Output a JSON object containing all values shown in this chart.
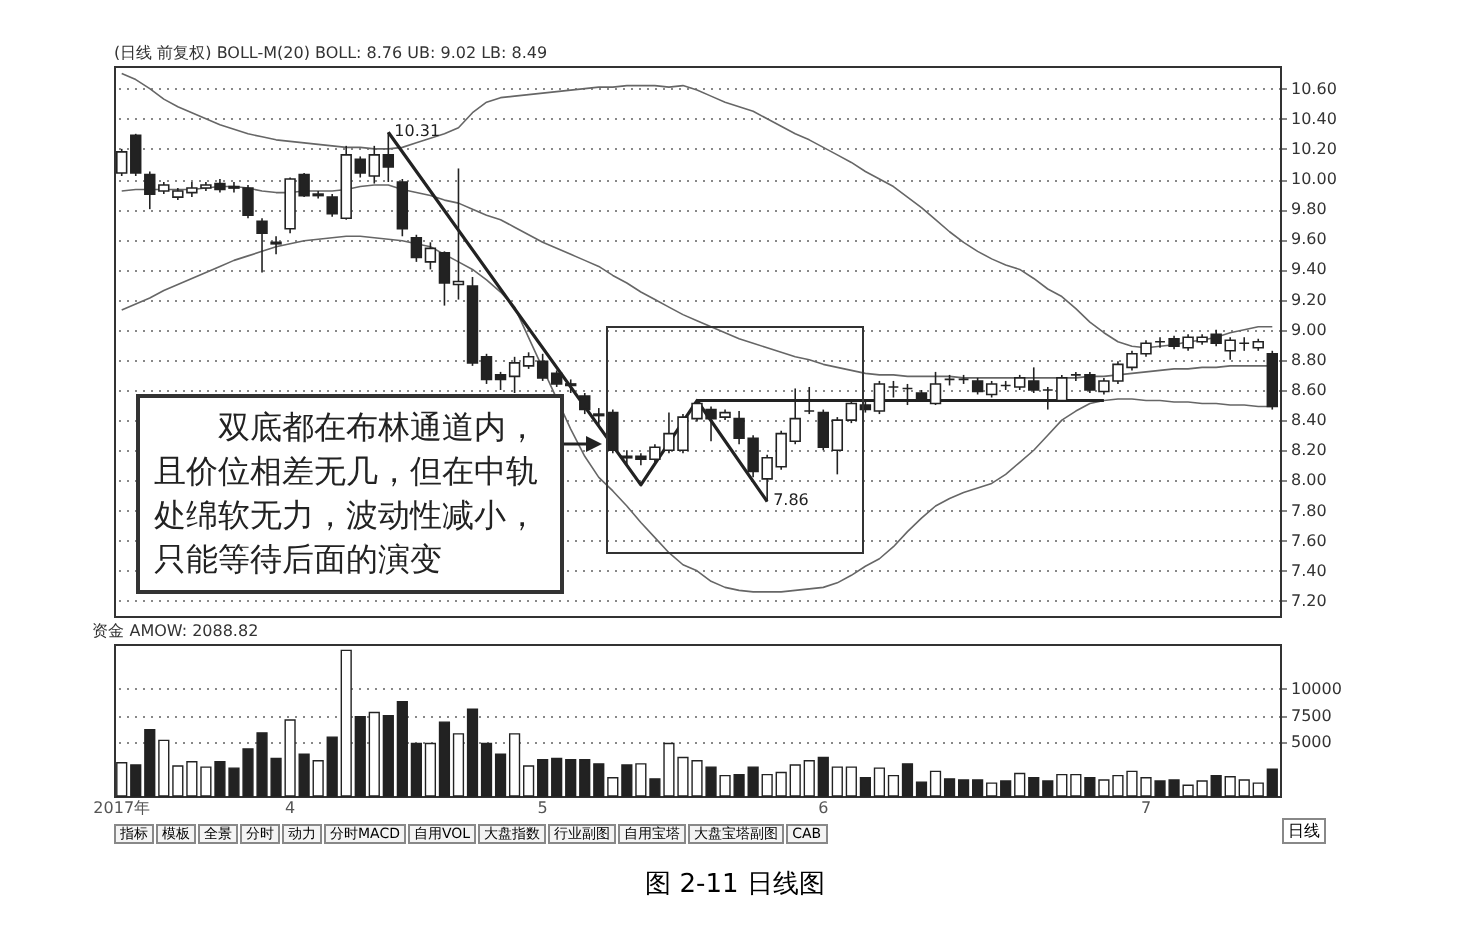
{
  "chart_data": [
    {
      "type": "candlestick",
      "title": "(日线 前复权) BOLL-M(20) BOLL: 8.76 UB: 9.02 LB: 8.49",
      "categories": [
        null,
        null,
        null,
        null,
        null,
        null,
        null,
        null,
        null,
        null,
        null,
        null,
        null,
        null,
        null,
        null,
        null,
        null,
        null,
        null,
        null,
        null,
        null,
        null,
        null,
        null,
        null,
        null,
        null,
        null,
        null,
        null,
        null,
        null,
        null,
        null,
        null,
        null,
        null,
        null,
        null,
        null,
        null,
        null,
        null,
        null,
        null,
        null,
        null,
        null,
        null,
        null,
        null,
        null,
        null,
        null,
        null,
        null,
        null,
        null,
        null,
        null,
        null,
        null,
        null,
        null,
        null,
        null,
        null,
        null,
        null,
        null,
        null,
        null,
        null,
        null,
        null,
        null,
        null,
        null,
        null,
        null,
        null
      ],
      "ohlc": [
        [
          10.04,
          10.2,
          10.02,
          10.18
        ],
        [
          10.29,
          10.3,
          10.02,
          10.04
        ],
        [
          10.03,
          10.05,
          9.8,
          9.9
        ],
        [
          9.92,
          9.98,
          9.9,
          9.96
        ],
        [
          9.88,
          9.94,
          9.86,
          9.92
        ],
        [
          9.91,
          9.98,
          9.88,
          9.94
        ],
        [
          9.94,
          9.98,
          9.92,
          9.96
        ],
        [
          9.97,
          10.0,
          9.91,
          9.93
        ],
        [
          9.95,
          9.98,
          9.91,
          9.94
        ],
        [
          9.94,
          9.96,
          9.74,
          9.76
        ],
        [
          9.72,
          9.74,
          9.38,
          9.64
        ],
        [
          9.58,
          9.62,
          9.5,
          9.57
        ],
        [
          9.67,
          10.01,
          9.64,
          10.0
        ],
        [
          10.03,
          10.04,
          9.88,
          9.89
        ],
        [
          9.9,
          9.92,
          9.87,
          9.89
        ],
        [
          9.88,
          9.9,
          9.75,
          9.77
        ],
        [
          9.74,
          10.22,
          9.73,
          10.16
        ],
        [
          10.13,
          10.15,
          10.01,
          10.04
        ],
        [
          10.02,
          10.22,
          9.97,
          10.16
        ],
        [
          10.16,
          10.31,
          9.98,
          10.08
        ],
        [
          9.98,
          10.0,
          9.62,
          9.67
        ],
        [
          9.61,
          9.63,
          9.45,
          9.48
        ],
        [
          9.45,
          9.58,
          9.4,
          9.54
        ],
        [
          9.51,
          9.52,
          9.16,
          9.31
        ],
        [
          9.3,
          10.07,
          9.2,
          9.32
        ],
        [
          9.29,
          9.35,
          8.76,
          8.78
        ],
        [
          8.82,
          8.84,
          8.64,
          8.67
        ],
        [
          8.7,
          8.72,
          8.6,
          8.67
        ],
        [
          8.69,
          8.82,
          8.58,
          8.78
        ],
        [
          8.76,
          8.85,
          8.74,
          8.82
        ],
        [
          8.79,
          8.84,
          8.66,
          8.68
        ],
        [
          8.71,
          8.73,
          8.62,
          8.64
        ],
        [
          8.64,
          8.67,
          8.58,
          8.63
        ],
        [
          8.56,
          8.58,
          8.44,
          8.47
        ],
        [
          8.44,
          8.48,
          8.36,
          8.43
        ],
        [
          8.45,
          8.47,
          8.18,
          8.2
        ],
        [
          8.16,
          8.2,
          8.1,
          8.15
        ],
        [
          8.16,
          8.18,
          8.1,
          8.14
        ],
        [
          8.14,
          8.24,
          8.12,
          8.22
        ],
        [
          8.2,
          8.45,
          8.18,
          8.31
        ],
        [
          8.2,
          8.44,
          8.18,
          8.42
        ],
        [
          8.41,
          8.53,
          8.39,
          8.51
        ],
        [
          8.47,
          8.49,
          8.26,
          8.41
        ],
        [
          8.42,
          8.47,
          8.4,
          8.45
        ],
        [
          8.41,
          8.46,
          8.24,
          8.28
        ],
        [
          8.28,
          8.3,
          8.02,
          8.06
        ],
        [
          8.01,
          8.17,
          7.86,
          8.15
        ],
        [
          8.09,
          8.33,
          8.07,
          8.31
        ],
        [
          8.26,
          8.61,
          8.24,
          8.41
        ],
        [
          8.46,
          8.62,
          8.44,
          8.46
        ],
        [
          8.45,
          8.47,
          8.2,
          8.22
        ],
        [
          8.2,
          8.42,
          8.04,
          8.4
        ],
        [
          8.4,
          8.53,
          8.38,
          8.51
        ],
        [
          8.5,
          8.52,
          8.45,
          8.47
        ],
        [
          8.46,
          8.66,
          8.44,
          8.64
        ],
        [
          8.62,
          8.66,
          8.55,
          8.62
        ],
        [
          8.61,
          8.64,
          8.5,
          8.61
        ],
        [
          8.58,
          8.6,
          8.52,
          8.53
        ],
        [
          8.51,
          8.72,
          8.5,
          8.64
        ],
        [
          8.67,
          8.7,
          8.63,
          8.67
        ],
        [
          8.67,
          8.7,
          8.64,
          8.67
        ],
        [
          8.66,
          8.68,
          8.57,
          8.59
        ],
        [
          8.57,
          8.66,
          8.55,
          8.64
        ],
        [
          8.63,
          8.66,
          8.6,
          8.63
        ],
        [
          8.62,
          8.7,
          8.6,
          8.68
        ],
        [
          8.66,
          8.75,
          8.58,
          8.6
        ],
        [
          8.6,
          8.62,
          8.47,
          8.6
        ],
        [
          8.53,
          8.7,
          8.52,
          8.68
        ],
        [
          8.7,
          8.72,
          8.66,
          8.7
        ],
        [
          8.7,
          8.72,
          8.58,
          8.6
        ],
        [
          8.59,
          8.68,
          8.57,
          8.66
        ],
        [
          8.66,
          8.79,
          8.64,
          8.77
        ],
        [
          8.75,
          8.86,
          8.73,
          8.84
        ],
        [
          8.84,
          8.93,
          8.82,
          8.91
        ],
        [
          8.92,
          8.95,
          8.88,
          8.92
        ],
        [
          8.94,
          8.96,
          8.87,
          8.89
        ],
        [
          8.88,
          8.97,
          8.86,
          8.95
        ],
        [
          8.92,
          8.97,
          8.9,
          8.95
        ],
        [
          8.97,
          9.0,
          8.89,
          8.91
        ],
        [
          8.86,
          8.95,
          8.8,
          8.93
        ],
        [
          8.91,
          8.95,
          8.86,
          8.91
        ],
        [
          8.88,
          8.94,
          8.86,
          8.92
        ],
        [
          8.84,
          8.86,
          8.47,
          8.49
        ]
      ],
      "series": [
        {
          "type": "line",
          "color": "#666666",
          "values": [
            10.7,
            10.66,
            10.6,
            10.53,
            10.48,
            10.44,
            10.4,
            10.36,
            10.33,
            10.3,
            10.28,
            10.26,
            10.25,
            10.24,
            10.23,
            10.22,
            10.21,
            10.21,
            10.2,
            10.2,
            10.21,
            10.24,
            10.27,
            10.3,
            10.34,
            10.44,
            10.51,
            10.54,
            10.55,
            10.56,
            10.57,
            10.58,
            10.59,
            10.6,
            10.61,
            10.61,
            10.62,
            10.62,
            10.62,
            10.61,
            10.62,
            10.59,
            10.55,
            10.51,
            10.48,
            10.45,
            10.4,
            10.35,
            10.3,
            10.26,
            10.21,
            10.16,
            10.11,
            10.05,
            10.0,
            9.95,
            9.88,
            9.81,
            9.73,
            9.65,
            9.58,
            9.52,
            9.47,
            9.43,
            9.4,
            9.34,
            9.27,
            9.22,
            9.14,
            9.05,
            8.98,
            8.92,
            8.89,
            8.88,
            8.89,
            8.9,
            8.92,
            8.93,
            8.95,
            8.98,
            9.0,
            9.02,
            9.02
          ]
        },
        {
          "type": "line",
          "color": "#666666",
          "values": [
            9.92,
            9.93,
            9.93,
            9.93,
            9.93,
            9.93,
            9.94,
            9.95,
            9.95,
            9.94,
            9.92,
            9.91,
            9.91,
            9.92,
            9.92,
            9.92,
            9.93,
            9.95,
            9.96,
            9.96,
            9.93,
            9.91,
            9.89,
            9.86,
            9.84,
            9.8,
            9.76,
            9.73,
            9.68,
            9.63,
            9.58,
            9.54,
            9.5,
            9.46,
            9.42,
            9.36,
            9.31,
            9.25,
            9.2,
            9.15,
            9.1,
            9.06,
            9.02,
            8.98,
            8.94,
            8.91,
            8.88,
            8.85,
            8.82,
            8.8,
            8.77,
            8.75,
            8.73,
            8.71,
            8.7,
            8.7,
            8.69,
            8.69,
            8.69,
            8.69,
            8.68,
            8.68,
            8.68,
            8.68,
            8.68,
            8.68,
            8.68,
            8.68,
            8.68,
            8.69,
            8.69,
            8.7,
            8.71,
            8.72,
            8.73,
            8.74,
            8.74,
            8.75,
            8.75,
            8.76,
            8.76,
            8.76,
            8.76
          ]
        },
        {
          "type": "line",
          "color": "#666666",
          "values": [
            9.13,
            9.17,
            9.21,
            9.26,
            9.3,
            9.34,
            9.38,
            9.42,
            9.46,
            9.49,
            9.52,
            9.55,
            9.57,
            9.59,
            9.6,
            9.61,
            9.62,
            9.62,
            9.61,
            9.6,
            9.59,
            9.57,
            9.55,
            9.5,
            9.45,
            9.4,
            9.33,
            9.25,
            9.15,
            null,
            null,
            null,
            8.34,
            8.16,
            8.02,
            7.93,
            7.83,
            7.72,
            7.62,
            7.52,
            7.44,
            7.4,
            7.33,
            7.29,
            7.27,
            7.26,
            7.26,
            7.26,
            7.27,
            7.28,
            7.29,
            7.32,
            7.37,
            7.43,
            7.48,
            7.56,
            7.66,
            7.75,
            7.83,
            7.88,
            7.92,
            7.95,
            7.98,
            8.04,
            8.12,
            8.2,
            8.3,
            8.4,
            8.46,
            8.51,
            8.53,
            8.54,
            8.54,
            8.53,
            8.53,
            8.52,
            8.52,
            8.51,
            8.51,
            8.5,
            8.5,
            8.49,
            8.49
          ]
        },
        {
          "type": "line",
          "color": "#222222",
          "values": [
            null,
            null,
            null,
            null,
            null,
            null,
            null,
            null,
            null,
            null,
            null,
            null,
            null,
            null,
            null,
            null,
            null,
            null,
            null,
            10.31,
            null,
            null,
            null,
            null,
            null,
            null,
            null,
            null,
            null,
            null,
            null,
            null,
            null,
            null,
            null,
            null,
            null,
            7.97,
            null,
            null,
            null,
            8.53,
            null,
            null,
            null,
            null,
            7.86,
            null,
            null,
            null,
            null,
            null,
            null,
            null,
            null,
            null,
            null,
            null,
            null,
            null,
            null,
            null,
            null,
            null,
            null,
            null,
            null,
            null,
            null,
            null,
            null,
            null,
            null,
            null,
            null,
            null,
            null,
            null,
            null,
            null,
            null,
            null,
            null
          ]
        },
        {
          "type": "line",
          "color": "#222222",
          "values": [
            null,
            null,
            null,
            null,
            null,
            null,
            null,
            null,
            null,
            null,
            null,
            null,
            null,
            null,
            null,
            null,
            null,
            null,
            null,
            null,
            null,
            null,
            null,
            null,
            null,
            null,
            null,
            null,
            null,
            null,
            null,
            null,
            null,
            null,
            null,
            null,
            null,
            null,
            null,
            null,
            null,
            8.53,
            null,
            null,
            null,
            null,
            null,
            null,
            null,
            null,
            null,
            null,
            null,
            null,
            null,
            null,
            null,
            null,
            null,
            null,
            null,
            null,
            null,
            null,
            null,
            null,
            null,
            null,
            null,
            null,
            8.53,
            null,
            null,
            null,
            null,
            null,
            null,
            null,
            null,
            null,
            null,
            null,
            null
          ]
        }
      ],
      "ylim": [
        7.1,
        10.75
      ],
      "yticks": [
        {
          "value": 7.2,
          "label": "7.20"
        },
        {
          "value": 7.4,
          "label": "7.40"
        },
        {
          "value": 7.6,
          "label": "7.60"
        },
        {
          "value": 7.8,
          "label": "7.80"
        },
        {
          "value": 8,
          "label": "8.00"
        },
        {
          "value": 8.2,
          "label": "8.20"
        },
        {
          "value": 8.4,
          "label": "8.40"
        },
        {
          "value": 8.6,
          "label": "8.60"
        },
        {
          "value": 8.8,
          "label": "8.80"
        },
        {
          "value": 9,
          "label": "9.00"
        },
        {
          "value": 9.2,
          "label": "9.20"
        },
        {
          "value": 9.4,
          "label": "9.40"
        },
        {
          "value": 9.6,
          "label": "9.60"
        },
        {
          "value": 9.8,
          "label": "9.80"
        },
        {
          "value": 10,
          "label": "10.00"
        },
        {
          "value": 10.2,
          "label": "10.20"
        },
        {
          "value": 10.4,
          "label": "10.40"
        },
        {
          "value": 10.6,
          "label": "10.60"
        }
      ],
      "grid": "y",
      "tick_labels": "y",
      "annotations": [
        {
          "text": "10.31",
          "y": 10.31
        },
        "7.86",
        "双底都在布林通道内，且价位相差无几，但在中轨处绵软无力，波动性减小，只能等待后面的演变"
      ]
    },
    {
      "type": "bar",
      "title": "资金 AMOW: 2088.82",
      "categories": [
        "2017年",
        null,
        null,
        null,
        null,
        null,
        null,
        null,
        null,
        null,
        null,
        null,
        "4",
        null,
        null,
        null,
        null,
        null,
        null,
        null,
        null,
        null,
        null,
        null,
        null,
        null,
        null,
        null,
        null,
        null,
        "5",
        null,
        null,
        null,
        null,
        null,
        null,
        null,
        null,
        null,
        null,
        null,
        null,
        null,
        null,
        null,
        null,
        null,
        null,
        null,
        "6",
        null,
        null,
        null,
        null,
        null,
        null,
        null,
        null,
        null,
        null,
        null,
        null,
        null,
        null,
        null,
        null,
        null,
        null,
        null,
        null,
        null,
        null,
        "7",
        null,
        null,
        null,
        null,
        null,
        null,
        null,
        null,
        null
      ],
      "values": [
        3100,
        2900,
        6200,
        5200,
        2800,
        3200,
        2700,
        3200,
        2600,
        4400,
        5900,
        3500,
        7100,
        3900,
        3300,
        5500,
        13600,
        7400,
        7800,
        7500,
        8800,
        4900,
        4900,
        6900,
        5800,
        8100,
        4900,
        3900,
        5800,
        2800,
        3400,
        3500,
        3400,
        3400,
        3000,
        1700,
        2900,
        3000,
        1600,
        4900,
        3600,
        3300,
        2700,
        1900,
        2000,
        2700,
        2000,
        2200,
        2900,
        3300,
        3600,
        2700,
        2700,
        1700,
        2600,
        1900,
        3000,
        1300,
        2300,
        1600,
        1500,
        1500,
        1200,
        1400,
        2100,
        1700,
        1400,
        2000,
        2000,
        1700,
        1500,
        1900,
        2300,
        1700,
        1400,
        1500,
        1000,
        1400,
        1900,
        1800,
        1500,
        1200,
        2500
      ],
      "colors": [
        "#ffffff",
        "#222222",
        "#222222",
        "#ffffff",
        "#ffffff",
        "#ffffff",
        "#ffffff",
        "#222222",
        "#222222",
        "#222222",
        "#222222",
        "#222222",
        "#ffffff",
        "#222222",
        "#ffffff",
        "#222222",
        "#ffffff",
        "#222222",
        "#ffffff",
        "#222222",
        "#222222",
        "#222222",
        "#ffffff",
        "#222222",
        "#ffffff",
        "#222222",
        "#222222",
        "#222222",
        "#ffffff",
        "#ffffff",
        "#222222",
        "#222222",
        "#222222",
        "#222222",
        "#222222",
        "#ffffff",
        "#222222",
        "#ffffff",
        "#222222",
        "#ffffff",
        "#ffffff",
        "#ffffff",
        "#222222",
        "#ffffff",
        "#222222",
        "#222222",
        "#ffffff",
        "#ffffff",
        "#ffffff",
        "#ffffff",
        "#222222",
        "#ffffff",
        "#ffffff",
        "#222222",
        "#ffffff",
        "#ffffff",
        "#222222",
        "#222222",
        "#ffffff",
        "#222222",
        "#222222",
        "#222222",
        "#ffffff",
        "#222222",
        "#ffffff",
        "#222222",
        "#222222",
        "#ffffff",
        "#ffffff",
        "#222222",
        "#ffffff",
        "#ffffff",
        "#ffffff",
        "#ffffff",
        "#222222",
        "#222222",
        "#ffffff",
        "#ffffff",
        "#222222",
        "#ffffff",
        "#ffffff",
        "#ffffff",
        "#222222"
      ],
      "ylim": [
        0,
        14200
      ],
      "yticks": [
        5000,
        7500,
        10000
      ],
      "grid": "y",
      "annotations": [
        "指标",
        "模板",
        "全景",
        "分时",
        "动力",
        "分时MACD",
        "自用VOL",
        "大盘指数",
        "行业副图",
        "自用宝塔",
        "大盘宝塔副图",
        "CAB",
        "日线",
        "图 2-11 日线图"
      ]
    }
  ]
}
